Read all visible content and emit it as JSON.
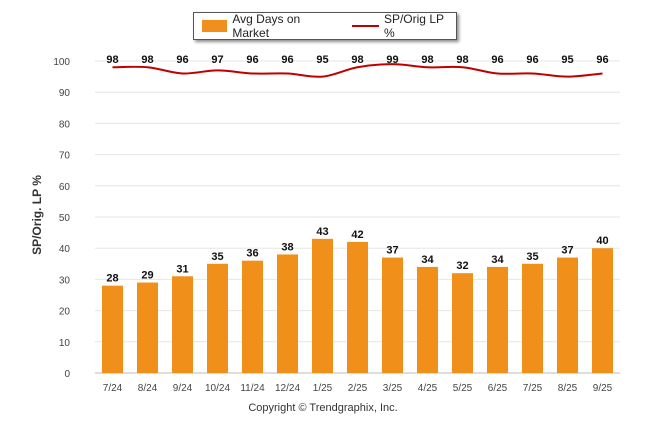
{
  "chart_data": {
    "type": "bar",
    "categories": [
      "7/24",
      "8/24",
      "9/24",
      "10/24",
      "11/24",
      "12/24",
      "1/25",
      "2/25",
      "3/25",
      "4/25",
      "5/25",
      "6/25",
      "7/25",
      "8/25",
      "9/25"
    ],
    "series": [
      {
        "name": "Avg Days on Market",
        "type": "bar",
        "color": "#F0901A",
        "values": [
          28,
          29,
          31,
          35,
          36,
          38,
          43,
          42,
          37,
          34,
          32,
          34,
          35,
          37,
          40
        ]
      },
      {
        "name": "SP/Orig LP %",
        "type": "line",
        "color": "#C00000",
        "values": [
          98,
          98,
          96,
          97,
          96,
          96,
          95,
          98,
          99,
          98,
          98,
          96,
          96,
          95,
          96
        ]
      }
    ],
    "ylabel": "SP/Orig. LP %",
    "ylim": [
      0,
      100
    ],
    "yticks": [
      0,
      10,
      20,
      30,
      40,
      50,
      60,
      70,
      80,
      90,
      100
    ],
    "grid": true,
    "legend_position": "top-center"
  },
  "legend": {
    "bar_label": "Avg Days on Market",
    "line_label": "SP/Orig LP %"
  },
  "footer": {
    "copyright": "Copyright © Trendgraphix, Inc."
  }
}
